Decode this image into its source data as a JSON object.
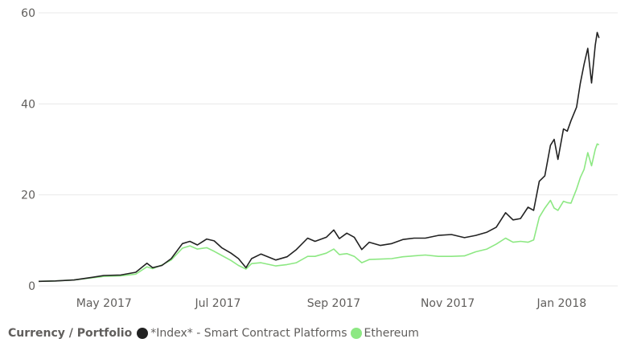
{
  "chart_data": {
    "type": "line",
    "legend_title": "Currency / Portfolio",
    "legend_placement": "bottom-left",
    "grid": true,
    "ylim": [
      0,
      60
    ],
    "yticks": [
      "0",
      "20",
      "40",
      "60"
    ],
    "xlim": [
      "2017-03-27",
      "2018-01-31"
    ],
    "xticks": [
      {
        "date": "2017-05-01",
        "label": "May 2017"
      },
      {
        "date": "2017-07-01",
        "label": "Jul 2017"
      },
      {
        "date": "2017-09-01",
        "label": "Sep 2017"
      },
      {
        "date": "2017-11-01",
        "label": "Nov 2017"
      },
      {
        "date": "2018-01-01",
        "label": "Jan 2018"
      }
    ],
    "series": [
      {
        "name": "*Index* - Smart Contract Platforms",
        "color": "#222222",
        "points": [
          [
            "2017-03-27",
            1.0
          ],
          [
            "2017-04-05",
            1.1
          ],
          [
            "2017-04-15",
            1.3
          ],
          [
            "2017-04-25",
            1.9
          ],
          [
            "2017-05-01",
            2.3
          ],
          [
            "2017-05-10",
            2.4
          ],
          [
            "2017-05-18",
            3.0
          ],
          [
            "2017-05-24",
            5.0
          ],
          [
            "2017-05-27",
            4.0
          ],
          [
            "2017-06-01",
            4.5
          ],
          [
            "2017-06-06",
            6.0
          ],
          [
            "2017-06-12",
            9.3
          ],
          [
            "2017-06-16",
            9.8
          ],
          [
            "2017-06-20",
            9.0
          ],
          [
            "2017-06-25",
            10.3
          ],
          [
            "2017-06-29",
            9.9
          ],
          [
            "2017-07-03",
            8.4
          ],
          [
            "2017-07-08",
            7.2
          ],
          [
            "2017-07-12",
            6.0
          ],
          [
            "2017-07-16",
            4.0
          ],
          [
            "2017-07-19",
            6.0
          ],
          [
            "2017-07-24",
            7.0
          ],
          [
            "2017-08-01",
            5.7
          ],
          [
            "2017-08-07",
            6.4
          ],
          [
            "2017-08-12",
            8.0
          ],
          [
            "2017-08-18",
            10.5
          ],
          [
            "2017-08-22",
            9.8
          ],
          [
            "2017-08-28",
            10.7
          ],
          [
            "2017-09-01",
            12.3
          ],
          [
            "2017-09-04",
            10.4
          ],
          [
            "2017-09-08",
            11.6
          ],
          [
            "2017-09-12",
            10.7
          ],
          [
            "2017-09-16",
            8.0
          ],
          [
            "2017-09-20",
            9.6
          ],
          [
            "2017-09-26",
            8.9
          ],
          [
            "2017-10-02",
            9.3
          ],
          [
            "2017-10-08",
            10.2
          ],
          [
            "2017-10-14",
            10.5
          ],
          [
            "2017-10-20",
            10.5
          ],
          [
            "2017-10-27",
            11.1
          ],
          [
            "2017-11-03",
            11.3
          ],
          [
            "2017-11-10",
            10.6
          ],
          [
            "2017-11-16",
            11.1
          ],
          [
            "2017-11-22",
            11.8
          ],
          [
            "2017-11-27",
            12.9
          ],
          [
            "2017-12-02",
            16.1
          ],
          [
            "2017-12-06",
            14.5
          ],
          [
            "2017-12-10",
            14.8
          ],
          [
            "2017-12-14",
            17.3
          ],
          [
            "2017-12-17",
            16.6
          ],
          [
            "2017-12-20",
            23.0
          ],
          [
            "2017-12-23",
            24.2
          ],
          [
            "2017-12-26",
            30.9
          ],
          [
            "2017-12-28",
            32.2
          ],
          [
            "2017-12-30",
            27.8
          ],
          [
            "2018-01-02",
            34.5
          ],
          [
            "2018-01-04",
            34.0
          ],
          [
            "2018-01-06",
            36.3
          ],
          [
            "2018-01-09",
            39.3
          ],
          [
            "2018-01-11",
            44.5
          ],
          [
            "2018-01-13",
            48.7
          ],
          [
            "2018-01-15",
            52.2
          ],
          [
            "2018-01-17",
            44.6
          ],
          [
            "2018-01-19",
            52.9
          ],
          [
            "2018-01-20",
            55.7
          ],
          [
            "2018-01-21",
            54.5
          ]
        ]
      },
      {
        "name": "Ethereum",
        "color": "#8de883",
        "points": [
          [
            "2017-03-27",
            1.0
          ],
          [
            "2017-04-05",
            1.1
          ],
          [
            "2017-04-15",
            1.3
          ],
          [
            "2017-04-25",
            1.8
          ],
          [
            "2017-05-01",
            2.1
          ],
          [
            "2017-05-10",
            2.2
          ],
          [
            "2017-05-18",
            2.6
          ],
          [
            "2017-05-24",
            4.2
          ],
          [
            "2017-05-27",
            3.8
          ],
          [
            "2017-06-01",
            4.6
          ],
          [
            "2017-06-06",
            5.7
          ],
          [
            "2017-06-12",
            8.3
          ],
          [
            "2017-06-16",
            8.8
          ],
          [
            "2017-06-20",
            8.1
          ],
          [
            "2017-06-25",
            8.4
          ],
          [
            "2017-06-29",
            7.6
          ],
          [
            "2017-07-03",
            6.7
          ],
          [
            "2017-07-08",
            5.6
          ],
          [
            "2017-07-12",
            4.5
          ],
          [
            "2017-07-16",
            3.7
          ],
          [
            "2017-07-19",
            4.9
          ],
          [
            "2017-07-24",
            5.1
          ],
          [
            "2017-08-01",
            4.4
          ],
          [
            "2017-08-07",
            4.7
          ],
          [
            "2017-08-12",
            5.1
          ],
          [
            "2017-08-18",
            6.5
          ],
          [
            "2017-08-22",
            6.5
          ],
          [
            "2017-08-28",
            7.2
          ],
          [
            "2017-09-01",
            8.1
          ],
          [
            "2017-09-04",
            6.9
          ],
          [
            "2017-09-08",
            7.1
          ],
          [
            "2017-09-12",
            6.5
          ],
          [
            "2017-09-16",
            5.1
          ],
          [
            "2017-09-20",
            5.8
          ],
          [
            "2017-09-26",
            5.9
          ],
          [
            "2017-10-02",
            6.0
          ],
          [
            "2017-10-08",
            6.4
          ],
          [
            "2017-10-14",
            6.6
          ],
          [
            "2017-10-20",
            6.8
          ],
          [
            "2017-10-27",
            6.5
          ],
          [
            "2017-11-03",
            6.5
          ],
          [
            "2017-11-10",
            6.6
          ],
          [
            "2017-11-16",
            7.5
          ],
          [
            "2017-11-22",
            8.1
          ],
          [
            "2017-11-27",
            9.2
          ],
          [
            "2017-12-02",
            10.5
          ],
          [
            "2017-12-06",
            9.6
          ],
          [
            "2017-12-10",
            9.8
          ],
          [
            "2017-12-14",
            9.6
          ],
          [
            "2017-12-17",
            10.1
          ],
          [
            "2017-12-20",
            15.1
          ],
          [
            "2017-12-23",
            17.1
          ],
          [
            "2017-12-26",
            18.8
          ],
          [
            "2017-12-28",
            17.1
          ],
          [
            "2017-12-30",
            16.6
          ],
          [
            "2018-01-02",
            18.6
          ],
          [
            "2018-01-04",
            18.3
          ],
          [
            "2018-01-06",
            18.2
          ],
          [
            "2018-01-09",
            21.3
          ],
          [
            "2018-01-11",
            23.8
          ],
          [
            "2018-01-13",
            25.6
          ],
          [
            "2018-01-15",
            29.3
          ],
          [
            "2018-01-17",
            26.4
          ],
          [
            "2018-01-19",
            30.0
          ],
          [
            "2018-01-20",
            31.2
          ],
          [
            "2018-01-21",
            31.0
          ]
        ]
      }
    ]
  }
}
